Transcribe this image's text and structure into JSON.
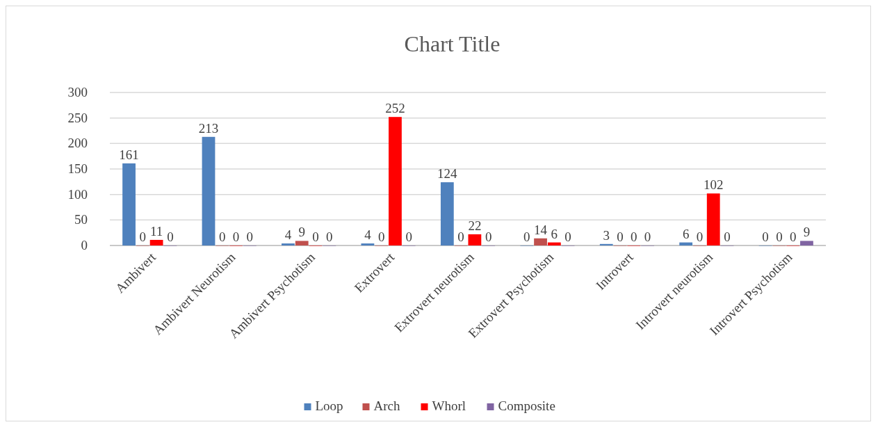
{
  "chart_data": {
    "type": "bar",
    "title": "Chart Title",
    "categories": [
      "Ambivert",
      "Ambivert Neurotism",
      "Ambivert Psychotism",
      "Extrovert",
      "Extrovert neurotism",
      "Extrovert Psychotism",
      "Introvert",
      "Introvert neurotism",
      "Introvert Psychotism"
    ],
    "series": [
      {
        "name": "Loop",
        "color": "#4f81bd",
        "values": [
          161,
          213,
          4,
          4,
          124,
          0,
          3,
          6,
          0
        ]
      },
      {
        "name": "Arch",
        "color": "#c0504d",
        "values": [
          0,
          0,
          9,
          0,
          0,
          14,
          0,
          0,
          0
        ]
      },
      {
        "name": "Whorl",
        "color": "#ff0000",
        "values": [
          11,
          0,
          0,
          252,
          22,
          6,
          0,
          102,
          0
        ]
      },
      {
        "name": "Composite",
        "color": "#8064a2",
        "values": [
          0,
          0,
          0,
          0,
          0,
          0,
          0,
          0,
          9
        ]
      }
    ],
    "ylim": [
      0,
      300
    ],
    "yticks": [
      0,
      50,
      100,
      150,
      200,
      250,
      300
    ],
    "grid": "y",
    "legend": "bottom",
    "data_labels": true
  }
}
